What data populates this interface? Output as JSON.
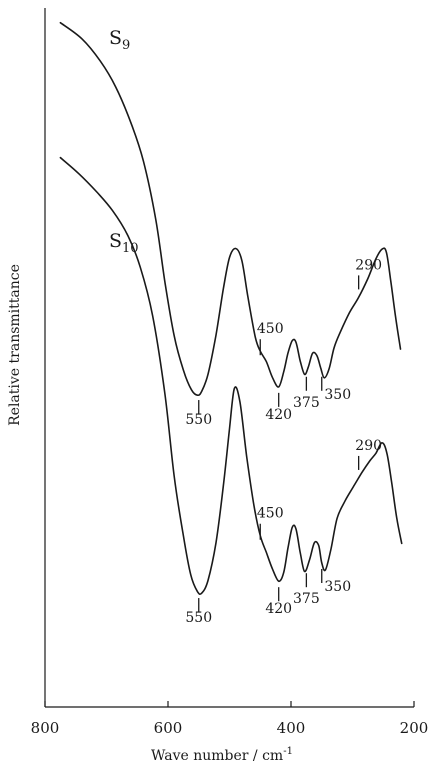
{
  "chart_data": {
    "type": "line",
    "title": "",
    "xlabel": "Wave number / cm",
    "xlabel_superscript": "-1",
    "ylabel": "Relative transmittance",
    "xlim": [
      800,
      200
    ],
    "x_reversed": true,
    "x_ticks": [
      800,
      600,
      400,
      200
    ],
    "y_ticks": [],
    "ylim": [
      0,
      1
    ],
    "grid": false,
    "legend": "none",
    "series": [
      {
        "name": "S9",
        "label_base": "S",
        "label_sub": "9",
        "x": [
          775,
          740,
          710,
          685,
          660,
          640,
          620,
          605,
          590,
          575,
          562,
          552,
          545,
          535,
          522,
          510,
          500,
          490,
          480,
          470,
          458,
          450,
          440,
          430,
          420,
          412,
          405,
          398,
          392,
          385,
          378,
          372,
          365,
          358,
          352,
          346,
          338,
          330,
          320,
          305,
          290,
          275,
          262,
          252,
          245,
          238,
          230,
          222
        ],
        "y": [
          0.979,
          0.956,
          0.924,
          0.887,
          0.835,
          0.781,
          0.698,
          0.608,
          0.531,
          0.482,
          0.454,
          0.446,
          0.452,
          0.476,
          0.532,
          0.598,
          0.643,
          0.656,
          0.639,
          0.586,
          0.529,
          0.509,
          0.494,
          0.471,
          0.458,
          0.479,
          0.506,
          0.524,
          0.522,
          0.495,
          0.476,
          0.486,
          0.506,
          0.503,
          0.486,
          0.471,
          0.484,
          0.514,
          0.536,
          0.564,
          0.586,
          0.613,
          0.641,
          0.655,
          0.651,
          0.611,
          0.558,
          0.512
        ]
      },
      {
        "name": "S10",
        "label_base": "S",
        "label_sub": "10",
        "x": [
          775,
          745,
          715,
          690,
          665,
          645,
          625,
          605,
          590,
          575,
          563,
          552,
          545,
          535,
          522,
          510,
          500,
          492,
          483,
          472,
          460,
          450,
          440,
          430,
          420,
          412,
          405,
          398,
          392,
          385,
          378,
          370,
          362,
          355,
          350,
          344,
          335,
          325,
          312,
          298,
          285,
          272,
          262,
          252,
          244,
          236,
          228,
          220
        ],
        "y": [
          0.786,
          0.763,
          0.736,
          0.71,
          0.674,
          0.629,
          0.56,
          0.448,
          0.33,
          0.245,
          0.189,
          0.165,
          0.163,
          0.181,
          0.235,
          0.316,
          0.398,
          0.456,
          0.436,
          0.358,
          0.287,
          0.245,
          0.221,
          0.197,
          0.18,
          0.192,
          0.227,
          0.257,
          0.255,
          0.221,
          0.194,
          0.21,
          0.235,
          0.231,
          0.206,
          0.196,
          0.226,
          0.27,
          0.295,
          0.316,
          0.335,
          0.352,
          0.363,
          0.378,
          0.363,
          0.319,
          0.27,
          0.234
        ]
      }
    ],
    "annotations": [
      {
        "series": "S9",
        "wavenumber": 550,
        "text": "550",
        "tick": "below"
      },
      {
        "series": "S9",
        "wavenumber": 450,
        "text": "450",
        "tick": "below"
      },
      {
        "series": "S9",
        "wavenumber": 420,
        "text": "420",
        "tick": "below"
      },
      {
        "series": "S9",
        "wavenumber": 375,
        "text": "375",
        "tick": "below"
      },
      {
        "series": "S9",
        "wavenumber": 350,
        "text": "350",
        "tick": "below"
      },
      {
        "series": "S9",
        "wavenumber": 290,
        "text": "290",
        "tick": "above"
      },
      {
        "series": "S10",
        "wavenumber": 550,
        "text": "550",
        "tick": "below"
      },
      {
        "series": "S10",
        "wavenumber": 450,
        "text": "450",
        "tick": "below"
      },
      {
        "series": "S10",
        "wavenumber": 420,
        "text": "420",
        "tick": "below"
      },
      {
        "series": "S10",
        "wavenumber": 375,
        "text": "375",
        "tick": "below"
      },
      {
        "series": "S10",
        "wavenumber": 350,
        "text": "350",
        "tick": "below"
      },
      {
        "series": "S10",
        "wavenumber": 290,
        "text": "290",
        "tick": "above"
      }
    ]
  }
}
